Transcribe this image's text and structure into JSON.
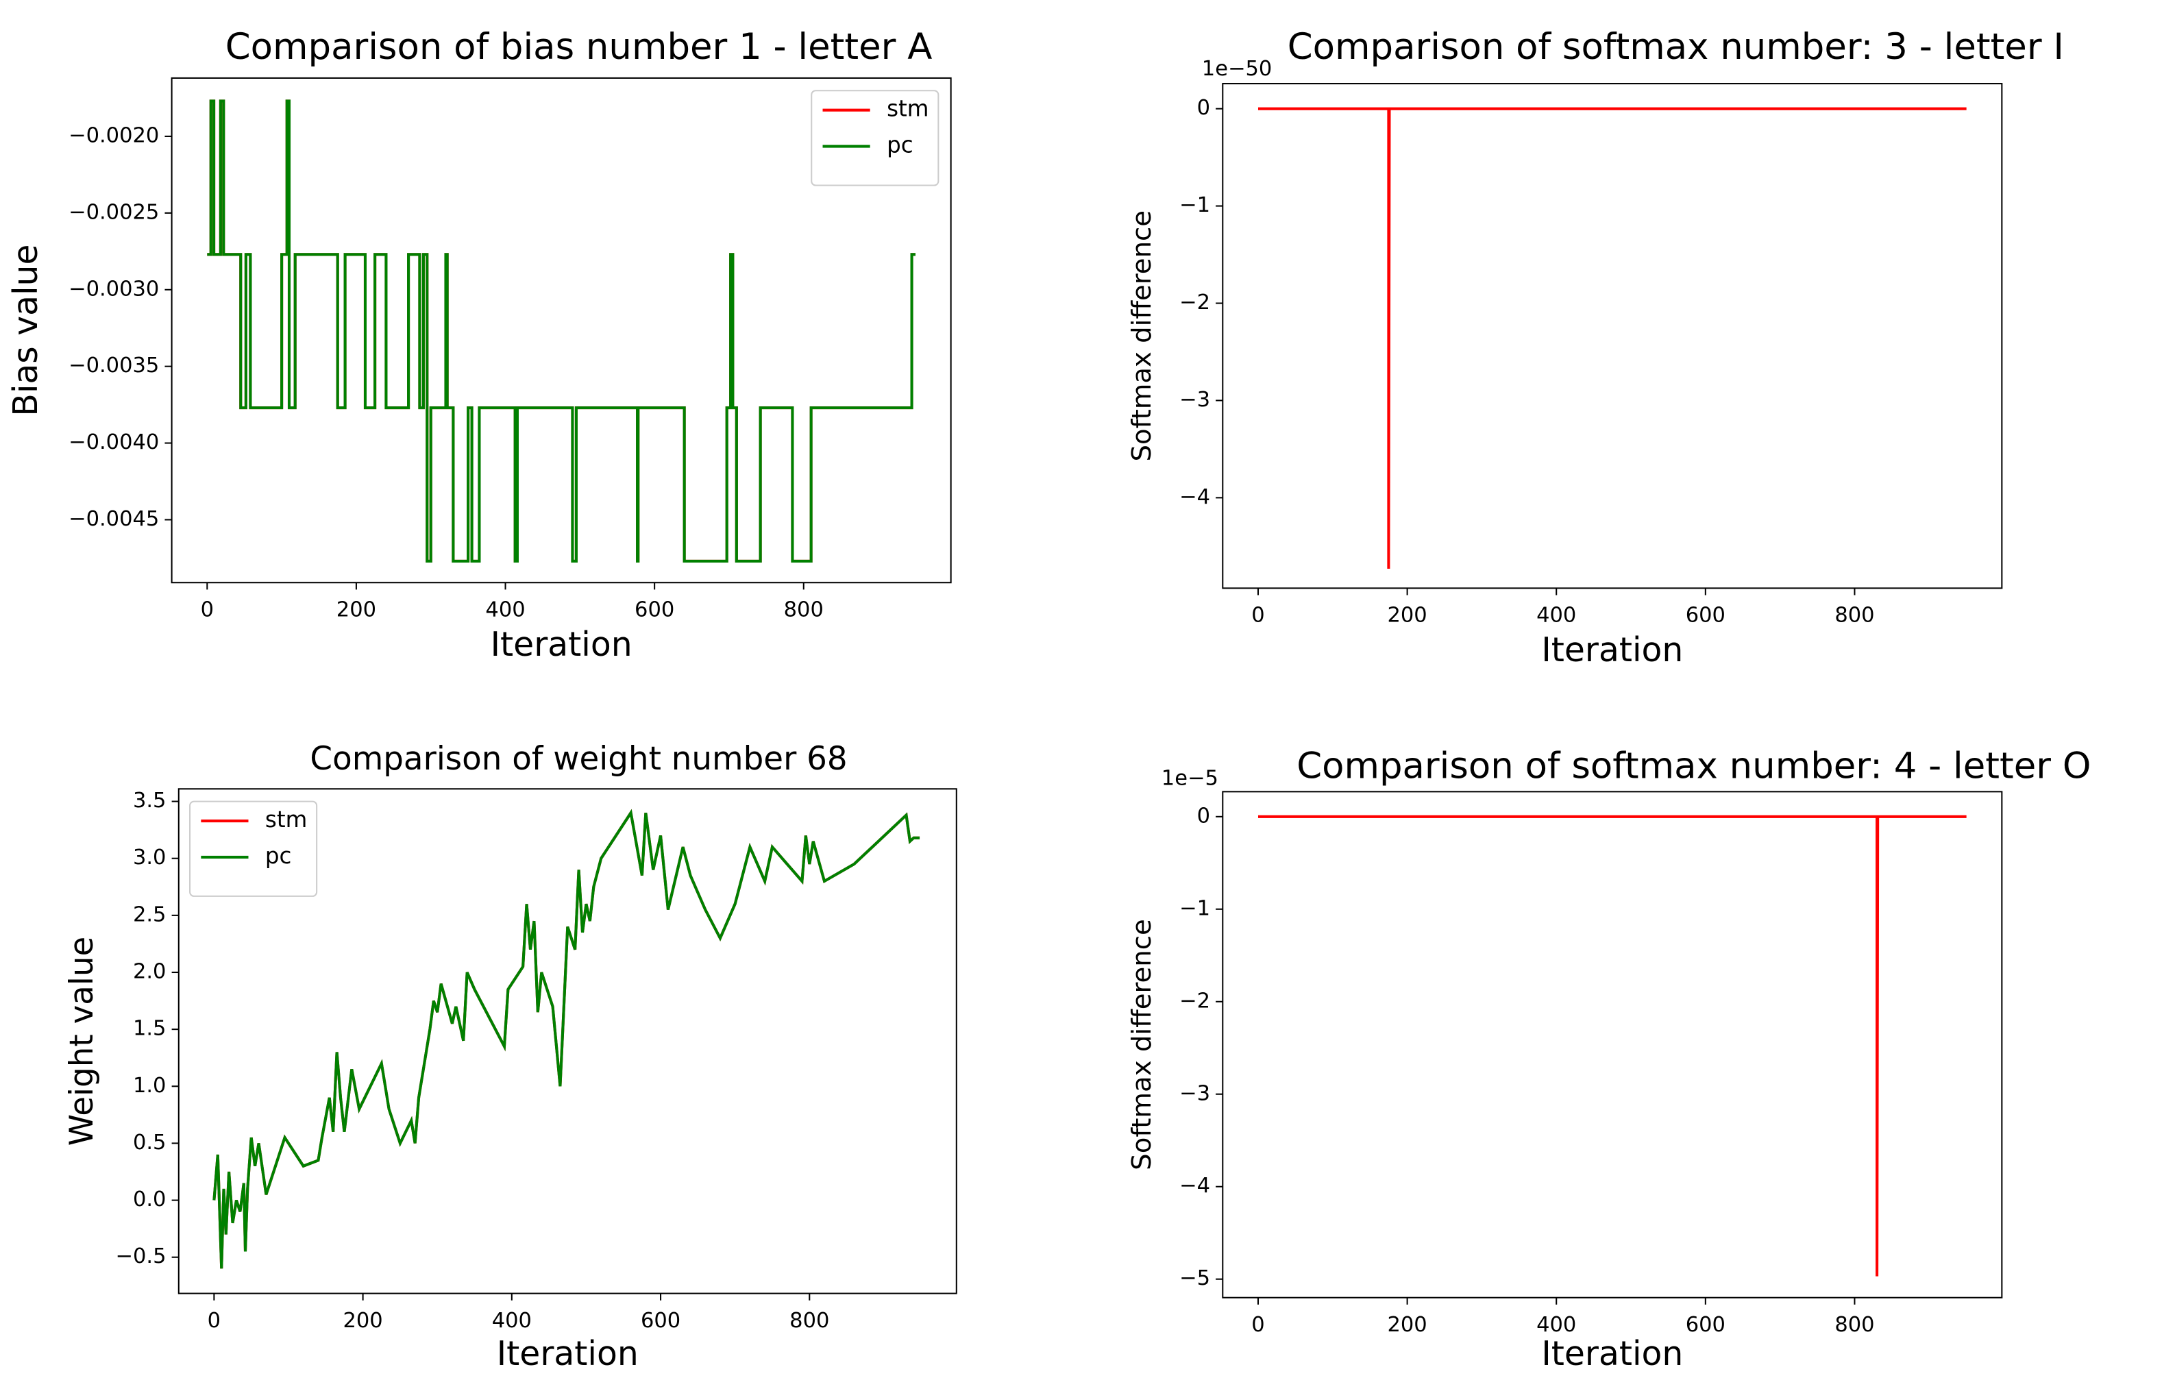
{
  "chart_data": [
    {
      "type": "line",
      "title": "Comparison of bias number 1 - letter A",
      "xlabel": "Iteration",
      "ylabel": "Bias value",
      "legend": "upper right",
      "x": [
        0,
        5,
        5,
        9,
        9,
        18,
        18,
        22,
        22,
        45,
        45,
        52,
        52,
        58,
        58,
        100,
        100,
        107,
        107,
        110,
        110,
        118,
        118,
        175,
        175,
        185,
        185,
        212,
        212,
        225,
        225,
        240,
        240,
        270,
        270,
        285,
        285,
        290,
        290,
        295,
        295,
        300,
        300,
        320,
        320,
        322,
        322,
        330,
        330,
        350,
        350,
        355,
        355,
        365,
        365,
        413,
        413,
        416,
        416,
        490,
        490,
        495,
        495,
        577,
        577,
        578,
        578,
        640,
        640,
        697,
        697,
        702,
        702,
        705,
        705,
        710,
        710,
        742,
        742,
        785,
        785,
        810,
        810,
        945,
        945,
        950
      ],
      "series": [
        {
          "name": "stm",
          "color": "#ff0000",
          "values": [
            -0.00277,
            -0.00277,
            -0.00177,
            -0.00177,
            -0.00277,
            -0.00277,
            -0.00177,
            -0.00177,
            -0.00277,
            -0.00277,
            -0.00377,
            -0.00377,
            -0.00277,
            -0.00277,
            -0.00377,
            -0.00377,
            -0.00277,
            -0.00277,
            -0.00177,
            -0.00177,
            -0.00377,
            -0.00377,
            -0.00277,
            -0.00277,
            -0.00377,
            -0.00377,
            -0.00277,
            -0.00277,
            -0.00377,
            -0.00377,
            -0.00277,
            -0.00277,
            -0.00377,
            -0.00377,
            -0.00277,
            -0.00277,
            -0.00377,
            -0.00377,
            -0.00277,
            -0.00277,
            -0.00477,
            -0.00477,
            -0.00377,
            -0.00377,
            -0.00277,
            -0.00277,
            -0.00377,
            -0.00377,
            -0.00477,
            -0.00477,
            -0.00377,
            -0.00377,
            -0.00477,
            -0.00477,
            -0.00377,
            -0.00377,
            -0.00477,
            -0.00477,
            -0.00377,
            -0.00377,
            -0.00477,
            -0.00477,
            -0.00377,
            -0.00377,
            -0.00477,
            -0.00477,
            -0.00377,
            -0.00377,
            -0.00477,
            -0.00477,
            -0.00377,
            -0.00377,
            -0.00277,
            -0.00277,
            -0.00377,
            -0.00377,
            -0.00477,
            -0.00477,
            -0.00377,
            -0.00377,
            -0.00477,
            -0.00477,
            -0.00377,
            -0.00377,
            -0.00277,
            -0.00277
          ]
        },
        {
          "name": "pc",
          "color": "#008000",
          "values": [
            -0.00277,
            -0.00277,
            -0.00177,
            -0.00177,
            -0.00277,
            -0.00277,
            -0.00177,
            -0.00177,
            -0.00277,
            -0.00277,
            -0.00377,
            -0.00377,
            -0.00277,
            -0.00277,
            -0.00377,
            -0.00377,
            -0.00277,
            -0.00277,
            -0.00177,
            -0.00177,
            -0.00377,
            -0.00377,
            -0.00277,
            -0.00277,
            -0.00377,
            -0.00377,
            -0.00277,
            -0.00277,
            -0.00377,
            -0.00377,
            -0.00277,
            -0.00277,
            -0.00377,
            -0.00377,
            -0.00277,
            -0.00277,
            -0.00377,
            -0.00377,
            -0.00277,
            -0.00277,
            -0.00477,
            -0.00477,
            -0.00377,
            -0.00377,
            -0.00277,
            -0.00277,
            -0.00377,
            -0.00377,
            -0.00477,
            -0.00477,
            -0.00377,
            -0.00377,
            -0.00477,
            -0.00477,
            -0.00377,
            -0.00377,
            -0.00477,
            -0.00477,
            -0.00377,
            -0.00377,
            -0.00477,
            -0.00477,
            -0.00377,
            -0.00377,
            -0.00477,
            -0.00477,
            -0.00377,
            -0.00377,
            -0.00477,
            -0.00477,
            -0.00377,
            -0.00377,
            -0.00277,
            -0.00277,
            -0.00377,
            -0.00377,
            -0.00477,
            -0.00477,
            -0.00377,
            -0.00377,
            -0.00477,
            -0.00477,
            -0.00377,
            -0.00377,
            -0.00277,
            -0.00277
          ]
        }
      ],
      "xlim": [
        -47.5,
        997.5
      ],
      "ylim": [
        -0.00491,
        -0.00162
      ],
      "xticks": [
        0,
        200,
        400,
        600,
        800
      ],
      "yticks": [
        {
          "value": -0.002,
          "label": "−0.0020"
        },
        {
          "value": -0.0025,
          "label": "−0.0025"
        },
        {
          "value": -0.003,
          "label": "−0.0030"
        },
        {
          "value": -0.0035,
          "label": "−0.0035"
        },
        {
          "value": -0.004,
          "label": "−0.0040"
        },
        {
          "value": -0.0045,
          "label": "−0.0045"
        }
      ]
    },
    {
      "type": "line",
      "title": "Comparison of softmax number: 3 - letter I",
      "xlabel": "Iteration",
      "ylabel": "Softmax difference",
      "y_offset_label": "1e−50",
      "x": [
        0,
        175,
        175,
        176,
        950
      ],
      "series": [
        {
          "name": "stm",
          "color": "#ff0000",
          "values": [
            0,
            0,
            -4.73,
            0,
            0
          ]
        }
      ],
      "xlim": [
        -47.5,
        997.5
      ],
      "ylim": [
        -4.93,
        0.258
      ],
      "xticks": [
        0,
        200,
        400,
        600,
        800
      ],
      "yticks": [
        0,
        {
          "value": -1,
          "label": "−1"
        },
        {
          "value": -2,
          "label": "−2"
        },
        {
          "value": -3,
          "label": "−3"
        },
        {
          "value": -4,
          "label": "−4"
        }
      ]
    },
    {
      "type": "line",
      "title": "Comparison of weight number 68",
      "xlabel": "Iteration",
      "ylabel": "Weight value",
      "legend": "upper left",
      "x": [
        0,
        5,
        8,
        10,
        13,
        16,
        20,
        25,
        30,
        35,
        40,
        42,
        45,
        50,
        55,
        60,
        70,
        95,
        120,
        140,
        145,
        155,
        160,
        165,
        170,
        175,
        185,
        195,
        225,
        235,
        250,
        265,
        270,
        275,
        290,
        295,
        300,
        305,
        320,
        325,
        335,
        340,
        350,
        390,
        395,
        415,
        420,
        425,
        430,
        435,
        440,
        455,
        465,
        475,
        485,
        490,
        495,
        500,
        505,
        510,
        520,
        560,
        575,
        580,
        590,
        600,
        610,
        630,
        640,
        660,
        680,
        700,
        720,
        740,
        750,
        790,
        795,
        800,
        805,
        820,
        860,
        930,
        935,
        940,
        948
      ],
      "series": [
        {
          "name": "stm",
          "color": "#ff0000",
          "values": [
            0,
            0.4,
            -0.2,
            -0.6,
            0.1,
            -0.3,
            0.25,
            -0.2,
            0,
            -0.1,
            0.15,
            -0.45,
            0.1,
            0.55,
            0.3,
            0.5,
            0.05,
            0.55,
            0.3,
            0.35,
            0.55,
            0.9,
            0.6,
            1.3,
            0.9,
            0.6,
            1.15,
            0.8,
            1.2,
            0.8,
            0.5,
            0.7,
            0.5,
            0.9,
            1.5,
            1.75,
            1.65,
            1.9,
            1.55,
            1.7,
            1.4,
            2.0,
            1.85,
            1.35,
            1.85,
            2.05,
            2.6,
            2.2,
            2.45,
            1.65,
            2.0,
            1.7,
            1.0,
            2.4,
            2.2,
            2.9,
            2.35,
            2.6,
            2.45,
            2.75,
            3.0,
            3.4,
            2.85,
            3.4,
            2.9,
            3.2,
            2.55,
            3.1,
            2.85,
            2.55,
            2.3,
            2.6,
            3.1,
            2.8,
            3.1,
            2.8,
            3.2,
            2.95,
            3.15,
            2.8,
            2.95,
            3.38,
            3.15,
            3.18,
            3.18
          ]
        },
        {
          "name": "pc",
          "color": "#008000",
          "values": [
            0,
            0.4,
            -0.2,
            -0.6,
            0.1,
            -0.3,
            0.25,
            -0.2,
            0,
            -0.1,
            0.15,
            -0.45,
            0.1,
            0.55,
            0.3,
            0.5,
            0.05,
            0.55,
            0.3,
            0.35,
            0.55,
            0.9,
            0.6,
            1.3,
            0.9,
            0.6,
            1.15,
            0.8,
            1.2,
            0.8,
            0.5,
            0.7,
            0.5,
            0.9,
            1.5,
            1.75,
            1.65,
            1.9,
            1.55,
            1.7,
            1.4,
            2.0,
            1.85,
            1.35,
            1.85,
            2.05,
            2.6,
            2.2,
            2.45,
            1.65,
            2.0,
            1.7,
            1.0,
            2.4,
            2.2,
            2.9,
            2.35,
            2.6,
            2.45,
            2.75,
            3.0,
            3.4,
            2.85,
            3.4,
            2.9,
            3.2,
            2.55,
            3.1,
            2.85,
            2.55,
            2.3,
            2.6,
            3.1,
            2.8,
            3.1,
            2.8,
            3.2,
            2.95,
            3.15,
            2.8,
            2.95,
            3.38,
            3.15,
            3.18,
            3.18
          ]
        }
      ],
      "xlim": [
        -47.5,
        997.5
      ],
      "ylim": [
        -0.818,
        3.61
      ],
      "xticks": [
        0,
        200,
        400,
        600,
        800
      ],
      "yticks": [
        {
          "value": -0.5,
          "label": "−0.5"
        },
        {
          "value": 0,
          "label": "0.0"
        },
        0.5,
        {
          "value": 1,
          "label": "1.0"
        },
        1.5,
        {
          "value": 2,
          "label": "2.0"
        },
        2.5,
        {
          "value": 3,
          "label": "3.0"
        },
        3.5
      ]
    },
    {
      "type": "line",
      "title": "Comparison of softmax number: 4 - letter O",
      "xlabel": "Iteration",
      "ylabel": "Softmax difference",
      "y_offset_label": "1e−5",
      "x": [
        0,
        830,
        830,
        831,
        950
      ],
      "series": [
        {
          "name": "stm",
          "color": "#ff0000",
          "values": [
            0,
            0,
            -4.97,
            0,
            0
          ]
        }
      ],
      "xlim": [
        -47.5,
        997.5
      ],
      "ylim": [
        -5.2,
        0.27
      ],
      "xticks": [
        0,
        200,
        400,
        600,
        800
      ],
      "yticks": [
        0,
        {
          "value": -1,
          "label": "−1"
        },
        {
          "value": -2,
          "label": "−2"
        },
        {
          "value": -3,
          "label": "−3"
        },
        {
          "value": -4,
          "label": "−4"
        },
        {
          "value": -5,
          "label": "−5"
        }
      ]
    }
  ]
}
